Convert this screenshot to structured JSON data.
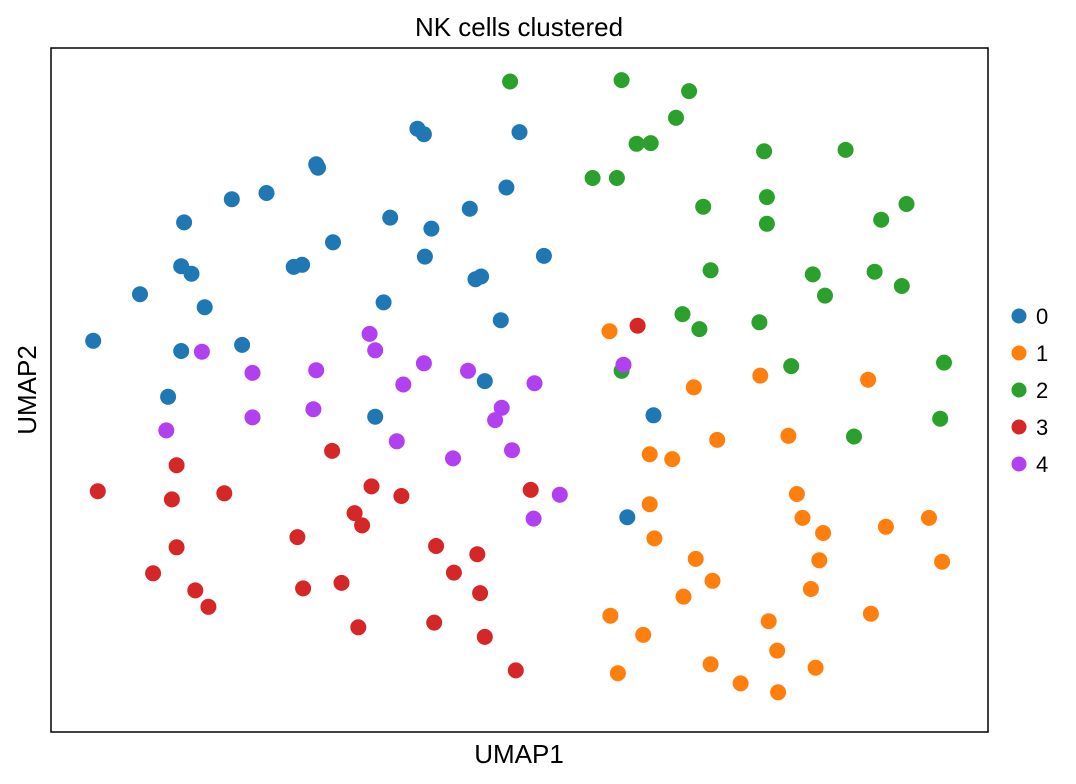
{
  "chart_data": {
    "type": "scatter",
    "title": "NK cells clustered",
    "xlabel": "UMAP1",
    "ylabel": "UMAP2",
    "xlim": [
      0,
      100
    ],
    "ylim": [
      0,
      100
    ],
    "ticks": false,
    "grid": false,
    "legend_position": "right",
    "series": [
      {
        "name": "0",
        "color": "#1f77b4",
        "points": [
          [
            4.5,
            57.2
          ],
          [
            9.5,
            64.0
          ],
          [
            12.5,
            49.0
          ],
          [
            13.9,
            55.7
          ],
          [
            13.9,
            68.1
          ],
          [
            14.2,
            74.5
          ],
          [
            15.0,
            67.0
          ],
          [
            16.4,
            62.1
          ],
          [
            19.3,
            77.9
          ],
          [
            20.4,
            56.6
          ],
          [
            23.0,
            78.8
          ],
          [
            25.9,
            68.0
          ],
          [
            26.8,
            68.3
          ],
          [
            28.3,
            83.0
          ],
          [
            28.5,
            82.5
          ],
          [
            30.1,
            71.6
          ],
          [
            34.6,
            46.1
          ],
          [
            35.5,
            62.8
          ],
          [
            36.2,
            75.2
          ],
          [
            39.1,
            88.2
          ],
          [
            39.8,
            87.4
          ],
          [
            39.9,
            69.5
          ],
          [
            40.6,
            73.6
          ],
          [
            44.7,
            76.5
          ],
          [
            45.3,
            66.2
          ],
          [
            45.9,
            66.6
          ],
          [
            46.3,
            51.3
          ],
          [
            48.0,
            60.2
          ],
          [
            48.6,
            79.6
          ],
          [
            50.0,
            87.7
          ],
          [
            52.6,
            69.6
          ],
          [
            61.5,
            31.4
          ],
          [
            64.3,
            46.3
          ]
        ]
      },
      {
        "name": "1",
        "color": "#ff7f0e",
        "points": [
          [
            59.6,
            58.6
          ],
          [
            59.7,
            17.0
          ],
          [
            60.5,
            8.6
          ],
          [
            63.2,
            14.2
          ],
          [
            63.9,
            33.3
          ],
          [
            63.9,
            40.6
          ],
          [
            64.4,
            28.3
          ],
          [
            66.3,
            39.9
          ],
          [
            67.5,
            19.8
          ],
          [
            68.6,
            50.4
          ],
          [
            68.8,
            25.3
          ],
          [
            70.4,
            9.9
          ],
          [
            70.6,
            22.1
          ],
          [
            71.1,
            42.7
          ],
          [
            73.6,
            7.1
          ],
          [
            75.7,
            52.1
          ],
          [
            76.6,
            16.2
          ],
          [
            77.5,
            11.9
          ],
          [
            77.6,
            5.8
          ],
          [
            78.7,
            43.3
          ],
          [
            79.6,
            34.8
          ],
          [
            80.2,
            31.3
          ],
          [
            81.1,
            20.9
          ],
          [
            81.6,
            9.4
          ],
          [
            82.0,
            25.1
          ],
          [
            82.4,
            29.1
          ],
          [
            87.2,
            51.5
          ],
          [
            87.5,
            17.3
          ],
          [
            89.1,
            30.0
          ],
          [
            93.7,
            31.3
          ],
          [
            95.1,
            24.9
          ]
        ]
      },
      {
        "name": "2",
        "color": "#2ca02c",
        "points": [
          [
            49.0,
            95.1
          ],
          [
            57.8,
            81.0
          ],
          [
            60.4,
            81.0
          ],
          [
            60.9,
            52.8
          ],
          [
            60.9,
            95.3
          ],
          [
            62.5,
            86.0
          ],
          [
            64.0,
            86.1
          ],
          [
            66.7,
            89.8
          ],
          [
            67.4,
            61.1
          ],
          [
            68.1,
            93.7
          ],
          [
            69.2,
            58.9
          ],
          [
            69.6,
            76.8
          ],
          [
            70.4,
            67.5
          ],
          [
            75.6,
            59.9
          ],
          [
            76.1,
            84.9
          ],
          [
            76.4,
            74.3
          ],
          [
            76.4,
            78.2
          ],
          [
            79.0,
            53.5
          ],
          [
            81.3,
            66.9
          ],
          [
            82.6,
            63.8
          ],
          [
            84.8,
            85.1
          ],
          [
            85.7,
            43.2
          ],
          [
            87.9,
            67.3
          ],
          [
            88.6,
            74.9
          ],
          [
            90.8,
            65.2
          ],
          [
            91.3,
            77.2
          ],
          [
            94.9,
            45.8
          ],
          [
            95.3,
            54.0
          ]
        ]
      },
      {
        "name": "3",
        "color": "#d62728",
        "points": [
          [
            5.0,
            35.2
          ],
          [
            10.9,
            23.2
          ],
          [
            12.9,
            34.0
          ],
          [
            13.4,
            27.0
          ],
          [
            13.4,
            39.0
          ],
          [
            15.4,
            20.7
          ],
          [
            16.8,
            18.3
          ],
          [
            18.5,
            34.9
          ],
          [
            26.3,
            28.5
          ],
          [
            26.9,
            21.0
          ],
          [
            30.0,
            41.1
          ],
          [
            31.0,
            21.8
          ],
          [
            32.4,
            32.0
          ],
          [
            33.2,
            30.2
          ],
          [
            32.8,
            15.3
          ],
          [
            34.2,
            35.9
          ],
          [
            37.4,
            34.5
          ],
          [
            40.9,
            16.0
          ],
          [
            41.1,
            27.2
          ],
          [
            43.0,
            23.3
          ],
          [
            45.5,
            26.0
          ],
          [
            45.8,
            20.3
          ],
          [
            46.3,
            13.9
          ],
          [
            49.6,
            9.0
          ],
          [
            51.2,
            35.4
          ],
          [
            62.6,
            59.4
          ]
        ]
      },
      {
        "name": "4",
        "color": "#b040f0",
        "points": [
          [
            12.3,
            44.1
          ],
          [
            16.1,
            55.6
          ],
          [
            21.5,
            52.5
          ],
          [
            21.5,
            46.0
          ],
          [
            28.0,
            47.2
          ],
          [
            28.3,
            52.9
          ],
          [
            34.0,
            58.2
          ],
          [
            34.6,
            55.8
          ],
          [
            36.9,
            42.5
          ],
          [
            37.6,
            50.8
          ],
          [
            39.8,
            53.9
          ],
          [
            42.9,
            40.0
          ],
          [
            44.5,
            52.8
          ],
          [
            47.4,
            45.6
          ],
          [
            48.1,
            47.4
          ],
          [
            49.2,
            41.2
          ],
          [
            51.6,
            51.0
          ],
          [
            51.5,
            31.2
          ],
          [
            54.3,
            34.7
          ],
          [
            61.1,
            53.7
          ]
        ]
      }
    ]
  }
}
